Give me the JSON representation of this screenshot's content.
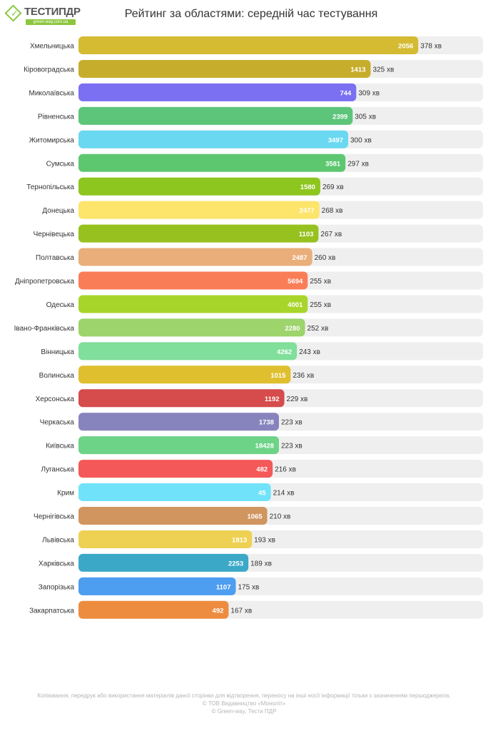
{
  "header": {
    "logo_main": "ТЕСТИПДР",
    "logo_sub": "green-way.com.ua",
    "title": "Рейтинг за областями: середній час тестування"
  },
  "footer": {
    "line1": "Копіювання, передрук або використання матеріалів даної сторінки для відтворення, переносу на інші носії інформації тільки з зазначенням першоджерела.",
    "line2": "© ТОВ Видавництво «Моноліт»",
    "line3": "© Green-way, Тести ПДР"
  },
  "chart_data": {
    "type": "bar",
    "orientation": "horizontal",
    "value_unit": "хв",
    "xlim": [
      0,
      450
    ],
    "categories": [
      "Хмельницька",
      "Кіровоградська",
      "Миколаївська",
      "Рівненська",
      "Житомирська",
      "Сумська",
      "Тернопільська",
      "Донецька",
      "Чернівецька",
      "Полтавська",
      "Дніпропетровська",
      "Одеська",
      "Івано-Франківська",
      "Вінницька",
      "Волинська",
      "Херсонська",
      "Черкаська",
      "Київська",
      "Луганська",
      "Крим",
      "Чернігівська",
      "Львівська",
      "Харківська",
      "Запорізька",
      "Закарпатська"
    ],
    "values": [
      378,
      325,
      309,
      305,
      300,
      297,
      269,
      268,
      267,
      260,
      255,
      255,
      252,
      243,
      236,
      229,
      223,
      223,
      216,
      214,
      210,
      193,
      189,
      175,
      167
    ],
    "counts": [
      2056,
      1413,
      744,
      2399,
      3497,
      3581,
      1580,
      2477,
      1103,
      2487,
      5694,
      4001,
      2280,
      4262,
      1015,
      1192,
      1738,
      18428,
      482,
      45,
      1065,
      1813,
      2253,
      1107,
      492
    ],
    "colors": [
      "#d4bb32",
      "#c7ad2c",
      "#7b6ff2",
      "#5cc57a",
      "#6ad8f0",
      "#5dc770",
      "#8dc61e",
      "#fde46a",
      "#96c11f",
      "#e9ae7a",
      "#f97e58",
      "#a8d52a",
      "#9dd46c",
      "#80df9a",
      "#dfbf2e",
      "#d64b4b",
      "#8784bd",
      "#6dd387",
      "#f45858",
      "#70e3fa",
      "#d19560",
      "#eed152",
      "#3ba8c7",
      "#4d9df0",
      "#ed8c3f"
    ],
    "track_color": "#efefef"
  }
}
